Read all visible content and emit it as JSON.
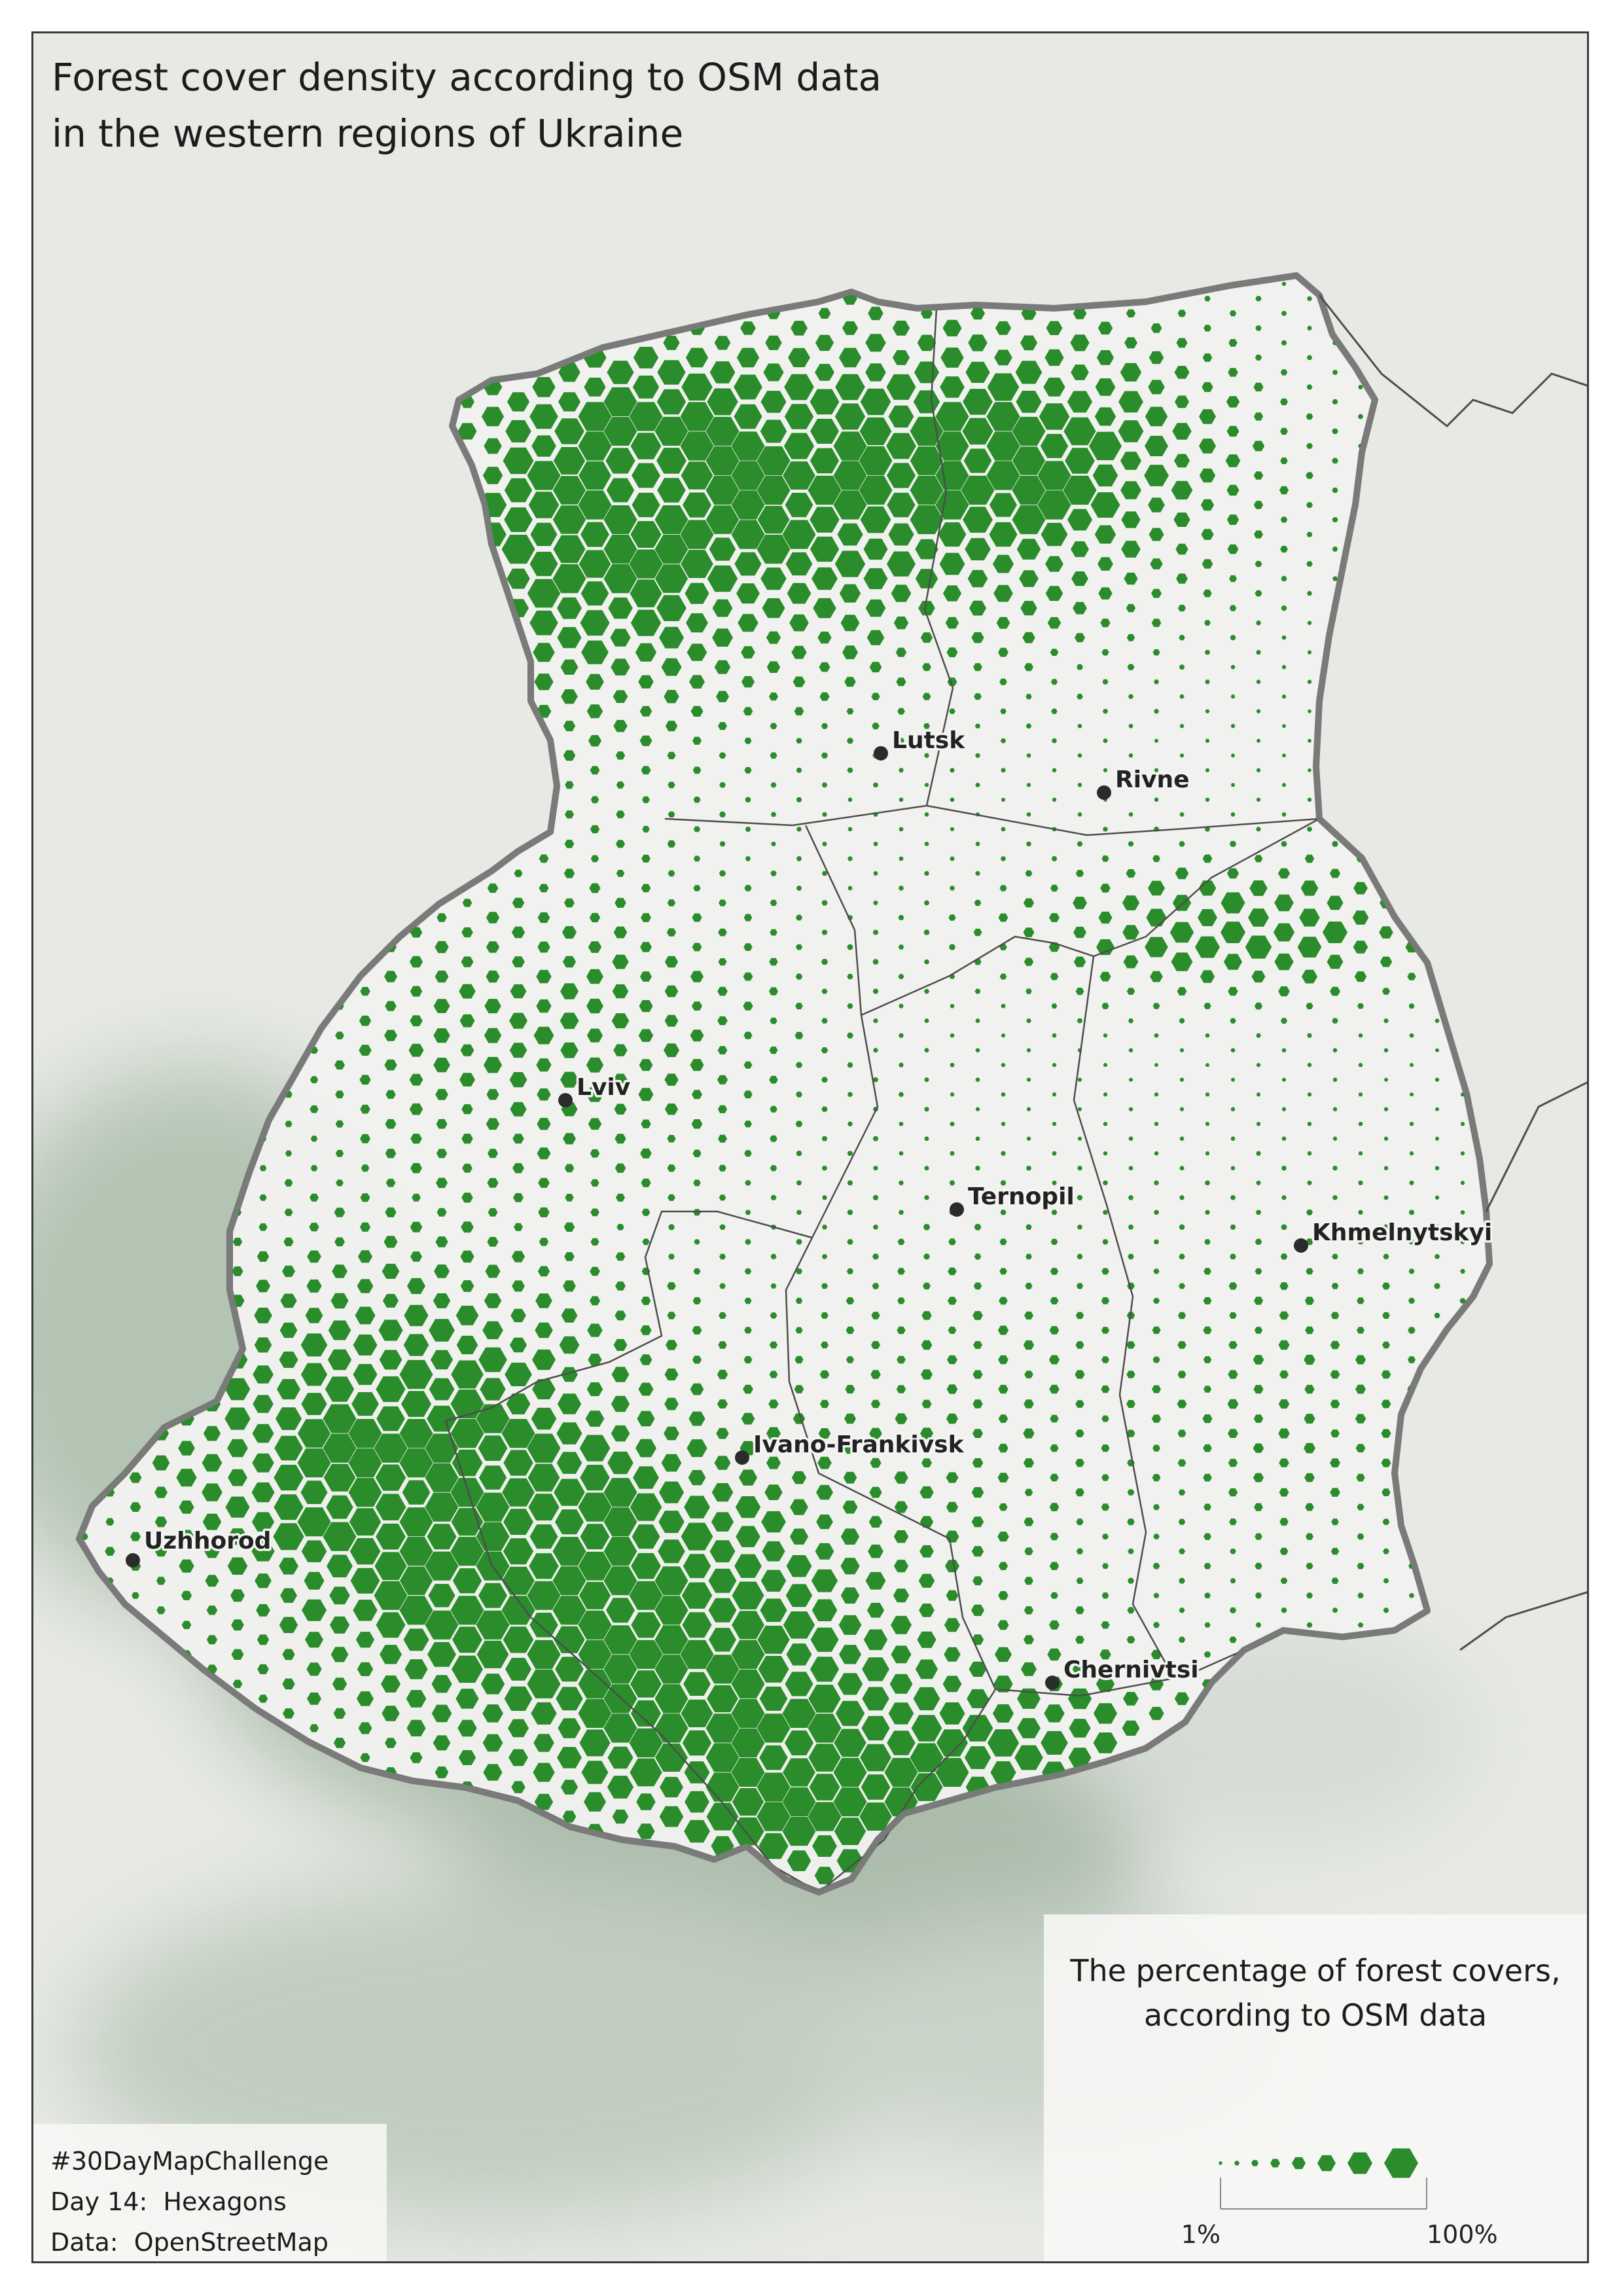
{
  "title": {
    "line1": "Forest cover density according to OSM data",
    "line2": "in the western regions of Ukraine"
  },
  "cities": [
    {
      "name": "Lutsk"
    },
    {
      "name": "Rivne"
    },
    {
      "name": "Lviv"
    },
    {
      "name": "Ternopil"
    },
    {
      "name": "Khmelnytskyi"
    },
    {
      "name": "Ivano-Frankivsk"
    },
    {
      "name": "Uzhhorod"
    },
    {
      "name": "Chernivtsi"
    }
  ],
  "credits": {
    "line1": "#30DayMapChallenge",
    "line2": "Day 14:  Hexagons",
    "line3": "Data:  OpenStreetMap"
  },
  "legend": {
    "title_line1": "The percentage of forest covers,",
    "title_line2": "according to OSM data",
    "min_label": "1%",
    "max_label": "100%"
  },
  "colors": {
    "forest": "#2a8c2a",
    "land": "#f2f2f0",
    "outside": "#e7e9e5",
    "relief": "#7f9b7f",
    "border": "#6d6d6d",
    "city": "#2b2b2b"
  }
}
